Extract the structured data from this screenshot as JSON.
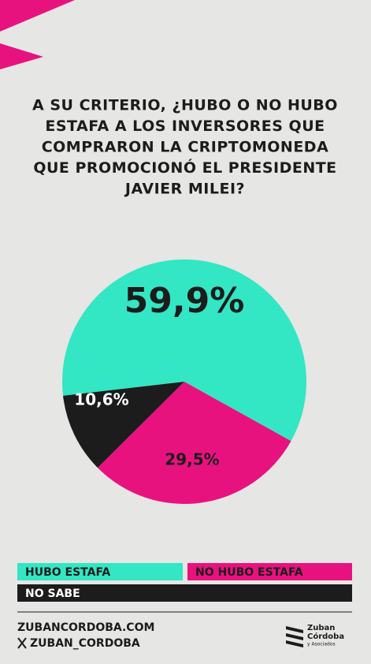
{
  "header": {
    "title_lines": [
      "A SU CRITERIO, ¿HUBO O NO HUBO",
      "ESTAFA A LOS INVERSORES QUE",
      "COMPRARON LA CRIPTOMONEDA",
      "QUE PROMOCIONÓ EL PRESIDENTE",
      "JAVIER MILEI?"
    ]
  },
  "chart_data": {
    "type": "pie",
    "categories": [
      "HUBO ESTAFA",
      "NO HUBO ESTAFA",
      "NO SABE"
    ],
    "values": [
      59.9,
      29.5,
      10.6
    ],
    "value_labels": [
      "59,9%",
      "29,5%",
      "10,6%"
    ],
    "colors": [
      "#33e6c4",
      "#e8127f",
      "#1c1c1c"
    ]
  },
  "footer": {
    "website": "ZUBANCORDOBA.COM",
    "social": "ZUBAN_CORDOBA"
  },
  "logo": {
    "line1": "Zuban",
    "line2": "Córdoba",
    "line3": "y Asociados"
  }
}
